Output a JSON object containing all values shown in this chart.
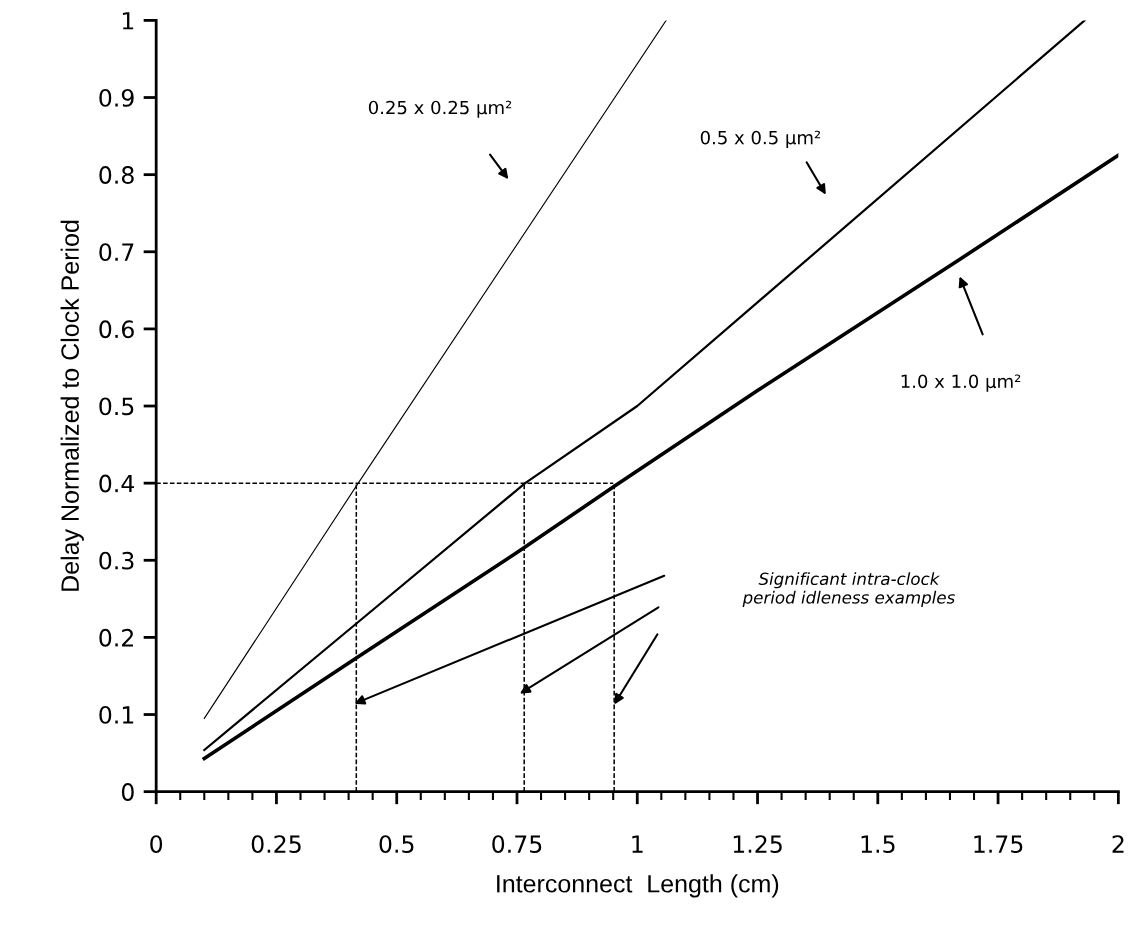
{
  "chart_data": {
    "type": "line",
    "xlabel": "Interconnect  Length (cm)",
    "ylabel": "Delay Normalized to Clock Period",
    "xlim": [
      0,
      2
    ],
    "ylim": [
      0,
      1
    ],
    "xticks": [
      0,
      0.25,
      0.5,
      0.75,
      1,
      1.25,
      1.5,
      1.75,
      2
    ],
    "yticks": [
      0,
      0.1,
      0.2,
      0.3,
      0.4,
      0.5,
      0.6,
      0.7,
      0.8,
      0.9,
      1
    ],
    "grid": false,
    "legend": false,
    "marker": "none",
    "series": [
      {
        "color": "#000000",
        "x": [
          0.1,
          0.42,
          1.06
        ],
        "values": [
          0.095,
          0.4,
          1.0
        ]
      },
      {
        "color": "#000000",
        "x": [
          0.1,
          0.42,
          0.767,
          1.0,
          1.93
        ],
        "values": [
          0.054,
          0.22,
          0.4,
          0.5,
          1.0
        ]
      },
      {
        "color": "#000000",
        "x": [
          0.1,
          0.42,
          0.75,
          0.95,
          1.25,
          1.67,
          2.0
        ],
        "values": [
          0.043,
          0.175,
          0.31,
          0.395,
          0.52,
          0.69,
          0.825
        ]
      },
      {
        "color": "#000000",
        "line_style": "dashed",
        "x": [
          0,
          0.95
        ],
        "values": [
          0.4,
          0.4
        ]
      },
      {
        "color": "#000000",
        "line_style": "dashed",
        "x": [
          0.416,
          0.416
        ],
        "values": [
          0,
          0.4
        ]
      },
      {
        "color": "#000000",
        "line_style": "dashed",
        "x": [
          0.765,
          0.765
        ],
        "values": [
          0,
          0.4
        ]
      },
      {
        "color": "#000000",
        "line_style": "dashed",
        "x": [
          0.952,
          0.952
        ],
        "values": [
          0,
          0.4
        ]
      }
    ],
    "annotations": [
      "0.25 x 0.25 μm²",
      "0.5 x 0.5 μm²",
      "1.0 x 1.0 μm²",
      "Significant intra-clock\nperiod idleness examples"
    ]
  }
}
